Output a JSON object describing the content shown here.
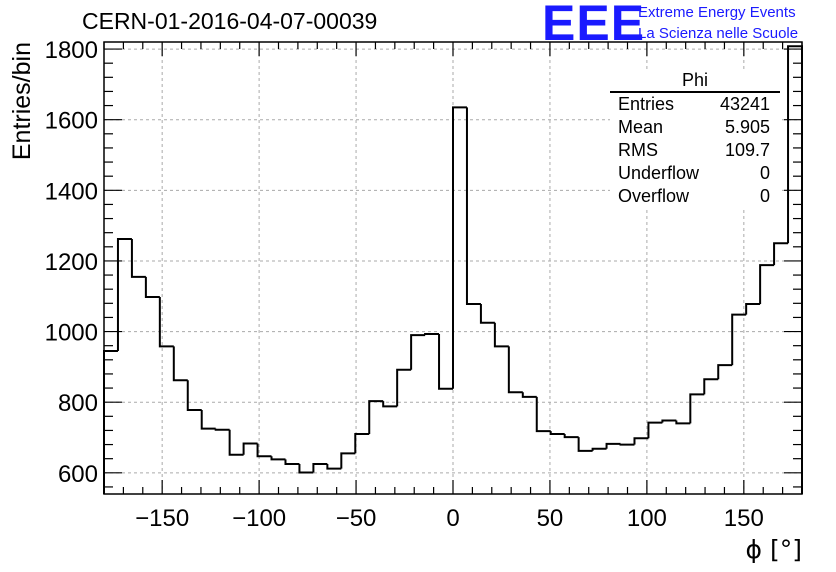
{
  "title": "CERN-01-2016-04-07-00039",
  "logo": {
    "letters": "EEE",
    "line1": "Extreme Energy Events",
    "line2": "La Scienza nelle Scuole",
    "color": "#1a1aff"
  },
  "stats": {
    "title": "Phi",
    "rows": [
      {
        "label": "Entries",
        "value": "43241"
      },
      {
        "label": "Mean",
        "value": "5.905"
      },
      {
        "label": "RMS",
        "value": "109.7"
      },
      {
        "label": "Underflow",
        "value": "0"
      },
      {
        "label": "Overflow",
        "value": "0"
      }
    ]
  },
  "chart_data": {
    "type": "bar",
    "xlabel": "ϕ [°]",
    "ylabel": "Entries/bin",
    "xlim": [
      -180,
      180
    ],
    "ylim": [
      540,
      1820
    ],
    "grid": true,
    "bin_width": 7.2,
    "xticks": [
      -150,
      -100,
      -50,
      0,
      50,
      100,
      150
    ],
    "yticks": [
      600,
      800,
      1000,
      1200,
      1400,
      1600,
      1800
    ],
    "values": [
      945,
      1262,
      1155,
      1098,
      958,
      862,
      778,
      725,
      722,
      651,
      683,
      647,
      638,
      625,
      601,
      625,
      612,
      655,
      710,
      803,
      788,
      892,
      990,
      993,
      838,
      1635,
      1078,
      1025,
      958,
      828,
      815,
      718,
      710,
      701,
      662,
      668,
      682,
      680,
      698,
      742,
      748,
      740,
      822,
      865,
      905,
      1048,
      1078,
      1188,
      1250,
      1808
    ],
    "line_color": "#000000",
    "grid_color": "#aaaaaa"
  }
}
